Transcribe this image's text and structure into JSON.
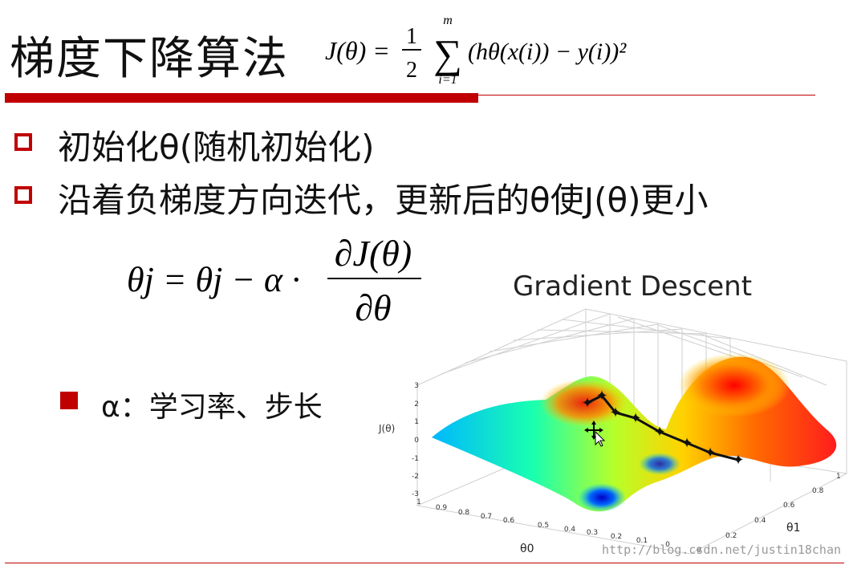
{
  "slide": {
    "title": "梯度下降算法",
    "cost_formula": {
      "lhs": "J(θ) =",
      "frac_num": "1",
      "frac_den": "2",
      "sum_top": "m",
      "sum_bottom": "i=1",
      "body": "(hθ(x(i)) − y(i))²"
    },
    "bullets": [
      "初始化θ(随机初始化)",
      "沿着负梯度方向迭代，更新后的θ使J(θ)更小"
    ],
    "update_formula": {
      "lhs": "θj = θj − α ·",
      "numerator": "∂J(θ)",
      "denominator": "∂θ"
    },
    "sub_bullet": "α：学习率、步长"
  },
  "figure": {
    "title": "Gradient Descent",
    "z_label": "J(θ)",
    "x_label": "θ0",
    "y_label": "θ1",
    "z_ticks": [
      "3",
      "2",
      "1",
      "0",
      "-1",
      "-2",
      "-3"
    ],
    "x_ticks": [
      "1",
      "0.9",
      "0.8",
      "0.7",
      "0.6",
      "0.5",
      "0.4",
      "0.3",
      "0.2",
      "0.1",
      "0"
    ],
    "y_ticks": [
      "0",
      "0.2",
      "0.4",
      "0.6",
      "0.8",
      "1"
    ]
  },
  "watermark": "http://blog.csdn.net/justin18chan"
}
